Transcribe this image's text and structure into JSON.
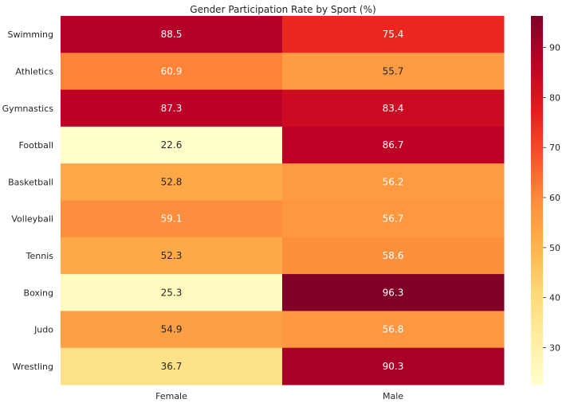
{
  "chart_data": {
    "type": "heatmap",
    "title": "Gender Participation Rate by Sport (%)",
    "xlabel": "",
    "ylabel": "",
    "columns": [
      "Female",
      "Male"
    ],
    "rows": [
      "Swimming",
      "Athletics",
      "Gymnastics",
      "Football",
      "Basketball",
      "Volleyball",
      "Tennis",
      "Boxing",
      "Judo",
      "Wrestling"
    ],
    "values": [
      [
        88.5,
        75.4
      ],
      [
        60.9,
        55.7
      ],
      [
        87.3,
        83.4
      ],
      [
        22.6,
        86.7
      ],
      [
        52.8,
        56.2
      ],
      [
        59.1,
        56.7
      ],
      [
        52.3,
        58.6
      ],
      [
        25.3,
        96.3
      ],
      [
        54.9,
        56.8
      ],
      [
        36.7,
        90.3
      ]
    ],
    "colorscale": "YlOrRd",
    "vmin": 22.6,
    "vmax": 96.3,
    "colorbar_ticks": [
      30,
      40,
      50,
      60,
      70,
      80,
      90
    ],
    "grid": false
  }
}
